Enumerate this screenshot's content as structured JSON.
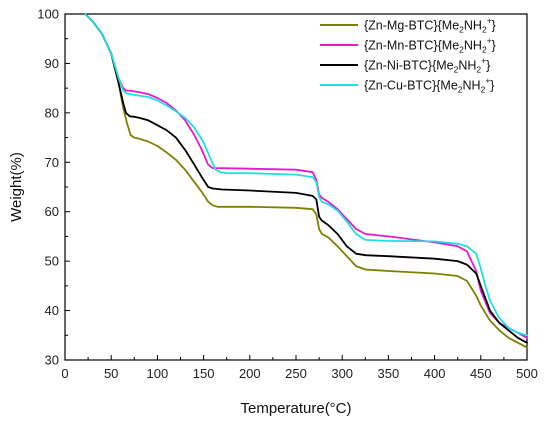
{
  "chart_data": {
    "type": "line",
    "xlabel": "Temperature(°C)",
    "ylabel": "Weight(%)",
    "xlim": [
      0,
      500
    ],
    "ylim": [
      30,
      100
    ],
    "x_ticks": [
      0,
      50,
      100,
      150,
      200,
      250,
      300,
      350,
      400,
      450,
      500
    ],
    "y_ticks": [
      30,
      40,
      50,
      60,
      70,
      80,
      90,
      100
    ],
    "grid": false,
    "legend_position": "top-right",
    "series": [
      {
        "name": "{Zn-Mg-BTC}{Me2NH2+}",
        "color": "#808000",
        "x": [
          22,
          30,
          40,
          50,
          58,
          63,
          67,
          71,
          75,
          80,
          90,
          100,
          110,
          120,
          130,
          140,
          148,
          155,
          160,
          165,
          175,
          200,
          250,
          268,
          272,
          275,
          278,
          285,
          295,
          305,
          315,
          325,
          350,
          400,
          425,
          435,
          445,
          450,
          460,
          470,
          480,
          490,
          500
        ],
        "y": [
          100,
          98.5,
          96,
          92,
          86,
          81,
          78,
          75.5,
          75,
          74.8,
          74.2,
          73.3,
          72,
          70.5,
          68.5,
          66,
          64,
          62,
          61.3,
          61,
          61,
          61,
          60.8,
          60.5,
          59.5,
          56.5,
          55.5,
          54.8,
          53,
          51,
          49,
          48.3,
          48,
          47.5,
          47,
          46,
          43,
          41,
          38,
          36,
          34.5,
          33.5,
          32.5
        ]
      },
      {
        "name": "{Zn-Mn-BTC}{Me2NH2+}",
        "color": "#e31ad0",
        "x": [
          22,
          30,
          40,
          50,
          58,
          63,
          66,
          70,
          80,
          90,
          100,
          110,
          120,
          130,
          140,
          148,
          155,
          160,
          170,
          200,
          250,
          268,
          272,
          275,
          278,
          285,
          295,
          305,
          315,
          325,
          350,
          400,
          425,
          435,
          445,
          450,
          460,
          470,
          480,
          490,
          500
        ],
        "y": [
          100,
          98.5,
          96,
          92,
          87,
          85,
          84.5,
          84.5,
          84.2,
          83.8,
          83,
          82,
          80.5,
          78.5,
          75.5,
          72.5,
          69.5,
          68.8,
          68.8,
          68.7,
          68.5,
          68,
          66.5,
          63.5,
          62.8,
          62,
          60.5,
          58.5,
          56.5,
          55.5,
          55,
          53.8,
          53,
          52,
          48,
          44,
          39.5,
          37.5,
          36.5,
          35.5,
          34.5
        ]
      },
      {
        "name": "{Zn-Ni-BTC}{Me2NH2+}",
        "color": "#000000",
        "x": [
          22,
          30,
          40,
          50,
          58,
          63,
          66,
          70,
          75,
          80,
          90,
          100,
          110,
          120,
          130,
          140,
          148,
          155,
          160,
          170,
          200,
          250,
          268,
          272,
          275,
          278,
          285,
          295,
          305,
          315,
          325,
          350,
          400,
          425,
          435,
          445,
          450,
          460,
          470,
          480,
          490,
          500
        ],
        "y": [
          100,
          98.5,
          96,
          92,
          86,
          82,
          80,
          79.3,
          79.2,
          79,
          78.5,
          77.5,
          76.5,
          75,
          72.5,
          69.5,
          67,
          65,
          64.7,
          64.5,
          64.3,
          63.8,
          63.2,
          62.5,
          59,
          58.2,
          57.3,
          55.5,
          53,
          51.5,
          51.2,
          51,
          50.5,
          50,
          49.3,
          47.5,
          45,
          40,
          37.5,
          36,
          34.5,
          33.5
        ]
      },
      {
        "name": "{Zn-Cu-BTC}{Me2NH2+}",
        "color": "#1ee0e0",
        "x": [
          22,
          30,
          40,
          50,
          58,
          63,
          66,
          70,
          80,
          90,
          100,
          110,
          120,
          130,
          140,
          150,
          158,
          163,
          168,
          175,
          200,
          250,
          268,
          272,
          275,
          278,
          285,
          295,
          305,
          315,
          325,
          350,
          400,
          425,
          435,
          445,
          450,
          455,
          460,
          470,
          480,
          490,
          500
        ],
        "y": [
          100,
          98.5,
          96,
          92,
          87,
          84.5,
          84,
          83.8,
          83.5,
          83.2,
          82.5,
          81.5,
          80.3,
          79,
          77,
          74,
          70.5,
          68.5,
          68,
          67.8,
          67.8,
          67.5,
          67,
          66,
          63,
          62,
          61.5,
          60.2,
          58,
          55.5,
          54.3,
          54.1,
          54,
          53.5,
          53,
          51.5,
          48.5,
          45,
          42,
          38.5,
          36.5,
          35.5,
          35
        ]
      }
    ]
  },
  "legend": {
    "items": [
      {
        "pre": "{Zn-Mg-BTC}{Me",
        "sub": "2",
        "mid": "NH",
        "sub2": "2",
        "sup": "+",
        "post": "}"
      },
      {
        "pre": "{Zn-Mn-BTC}{Me",
        "sub": "2",
        "mid": "NH",
        "sub2": "2",
        "sup": "+",
        "post": "}"
      },
      {
        "pre": "{Zn-Ni-BTC}{Me",
        "sub": "2",
        "mid": "NH",
        "sub2": "2",
        "sup": "+",
        "post": "}"
      },
      {
        "pre": "{Zn-Cu-BTC}{Me",
        "sub": "2",
        "mid": "NH",
        "sub2": "2",
        "sup": "+",
        "post": "}"
      }
    ]
  }
}
